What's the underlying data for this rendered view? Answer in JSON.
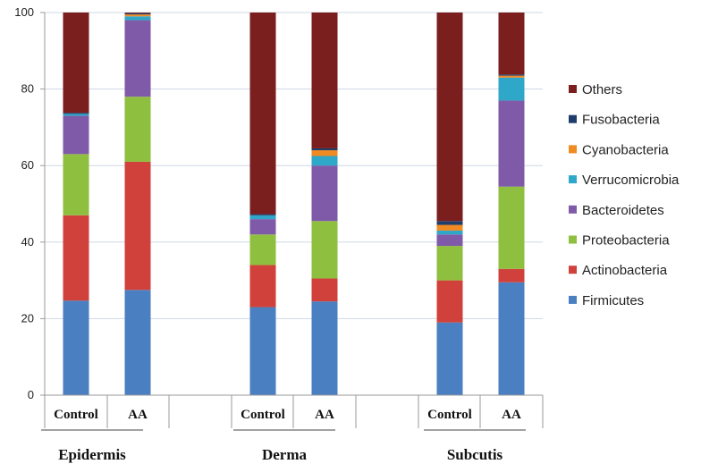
{
  "chart_data": {
    "type": "bar",
    "stacked": true,
    "ylim": [
      0,
      100
    ],
    "yticks": [
      0,
      20,
      40,
      60,
      80,
      100
    ],
    "grid": true,
    "legend_position": "right",
    "groups": [
      "Epidermis",
      "Derma",
      "Subcutis"
    ],
    "categories": [
      "Control",
      "AA",
      "Control",
      "AA",
      "Control",
      "AA"
    ],
    "series": [
      {
        "name": "Firmicutes",
        "color": "#4a7fc1",
        "values": [
          24.7,
          27.5,
          23.0,
          24.5,
          19.0,
          29.5
        ]
      },
      {
        "name": "Actinobacteria",
        "color": "#d0413c",
        "values": [
          22.3,
          33.5,
          11.0,
          6.0,
          11.0,
          3.5
        ]
      },
      {
        "name": "Proteobacteria",
        "color": "#8fbf3f",
        "values": [
          16.0,
          17.0,
          8.0,
          15.0,
          9.0,
          21.5
        ]
      },
      {
        "name": "Bacteroidetes",
        "color": "#7f5aa8",
        "values": [
          10.0,
          20.0,
          4.0,
          14.5,
          3.0,
          22.5
        ]
      },
      {
        "name": "Verrucomicrobia",
        "color": "#2fa7c8",
        "values": [
          0.5,
          1.0,
          1.0,
          2.5,
          1.0,
          6.0
        ]
      },
      {
        "name": "Cyanobacteria",
        "color": "#f08a23",
        "values": [
          0.0,
          0.5,
          0.0,
          1.5,
          1.5,
          0.5
        ]
      },
      {
        "name": "Fusobacteria",
        "color": "#1f3d6a",
        "values": [
          0.3,
          0.3,
          0.3,
          0.5,
          1.0,
          0.3
        ]
      },
      {
        "name": "Others",
        "color": "#7b1e1e",
        "values": [
          26.2,
          0.2,
          52.7,
          35.5,
          54.5,
          16.2
        ]
      }
    ]
  }
}
